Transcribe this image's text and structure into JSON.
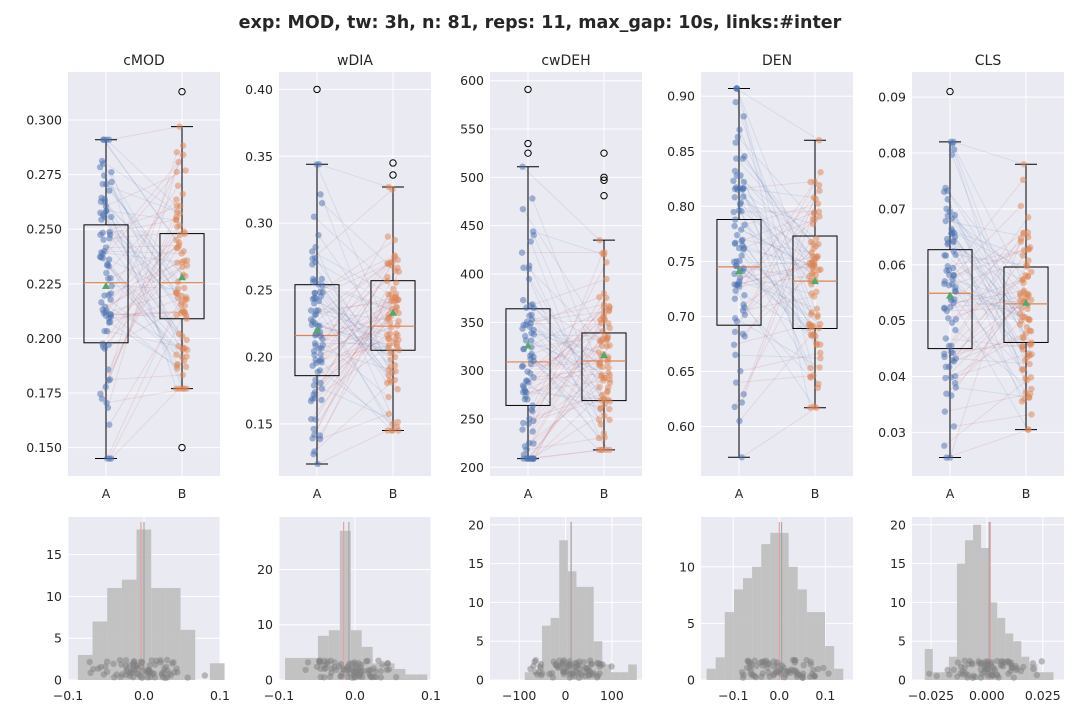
{
  "figure": {
    "title": "exp: MOD, tw: 3h, n: 81, reps: 11, max_gap: 10s, links:#inter"
  },
  "colors": {
    "background": "#eaeaf2",
    "grid": "#ffffff",
    "group_a": "#4c72b0",
    "group_b": "#dd8452",
    "median": "#dd8452",
    "mean_marker": "#55a868",
    "hist_bar": "#c0c0c0",
    "hist_points": "#808080",
    "ref_line": "#e8a0a0",
    "link_up": "#c44e52",
    "link_down": "#4c72b0"
  },
  "chart_data": [
    {
      "type": "box",
      "title": "cMOD",
      "categories": [
        "A",
        "B"
      ],
      "ylim": [
        0.137,
        0.322
      ],
      "yticks": [
        "0.150",
        "0.175",
        "0.200",
        "0.225",
        "0.250",
        "0.275",
        "0.300"
      ],
      "boxes": [
        {
          "name": "A",
          "whisker_low": 0.145,
          "q1": 0.198,
          "median": 0.2255,
          "q3": 0.252,
          "whisker_high": 0.291,
          "mean": 0.224,
          "outliers": []
        },
        {
          "name": "B",
          "whisker_low": 0.177,
          "q1": 0.209,
          "median": 0.2255,
          "q3": 0.248,
          "whisker_high": 0.297,
          "mean": 0.228,
          "outliers": [
            0.15,
            0.313
          ]
        }
      ]
    },
    {
      "type": "box",
      "title": "wDIA",
      "categories": [
        "A",
        "B"
      ],
      "ylim": [
        0.111,
        0.413
      ],
      "yticks": [
        "0.15",
        "0.20",
        "0.25",
        "0.30",
        "0.35",
        "0.40"
      ],
      "boxes": [
        {
          "name": "A",
          "whisker_low": 0.12,
          "q1": 0.186,
          "median": 0.216,
          "q3": 0.254,
          "whisker_high": 0.344,
          "mean": 0.22,
          "outliers": [
            0.4
          ]
        },
        {
          "name": "B",
          "whisker_low": 0.145,
          "q1": 0.205,
          "median": 0.223,
          "q3": 0.257,
          "whisker_high": 0.327,
          "mean": 0.233,
          "outliers": [
            0.336,
            0.345
          ]
        }
      ]
    },
    {
      "type": "box",
      "title": "cwDEH",
      "categories": [
        "A",
        "B"
      ],
      "ylim": [
        191,
        609
      ],
      "yticks": [
        "200",
        "250",
        "300",
        "350",
        "400",
        "450",
        "500",
        "550",
        "600"
      ],
      "boxes": [
        {
          "name": "A",
          "whisker_low": 209,
          "q1": 264,
          "median": 309,
          "q3": 364,
          "whisker_high": 511,
          "mean": 326,
          "outliers": [
            525,
            535,
            591
          ]
        },
        {
          "name": "B",
          "whisker_low": 218,
          "q1": 269,
          "median": 310,
          "q3": 339,
          "whisker_high": 435,
          "mean": 316,
          "outliers": [
            481,
            497,
            500,
            525
          ]
        }
      ]
    },
    {
      "type": "box",
      "title": "DEN",
      "categories": [
        "A",
        "B"
      ],
      "ylim": [
        0.555,
        0.922
      ],
      "yticks": [
        "0.60",
        "0.65",
        "0.70",
        "0.75",
        "0.80",
        "0.85",
        "0.90"
      ],
      "boxes": [
        {
          "name": "A",
          "whisker_low": 0.572,
          "q1": 0.692,
          "median": 0.745,
          "q3": 0.788,
          "whisker_high": 0.907,
          "mean": 0.741,
          "outliers": []
        },
        {
          "name": "B",
          "whisker_low": 0.617,
          "q1": 0.689,
          "median": 0.732,
          "q3": 0.773,
          "whisker_high": 0.86,
          "mean": 0.732,
          "outliers": []
        }
      ]
    },
    {
      "type": "box",
      "title": "CLS",
      "categories": [
        "A",
        "B"
      ],
      "ylim": [
        0.0222,
        0.0945
      ],
      "yticks": [
        "0.03",
        "0.04",
        "0.05",
        "0.06",
        "0.07",
        "0.08",
        "0.09"
      ],
      "boxes": [
        {
          "name": "A",
          "whisker_low": 0.0255,
          "q1": 0.045,
          "median": 0.0549,
          "q3": 0.0627,
          "whisker_high": 0.082,
          "mean": 0.0545,
          "outliers": [
            0.091
          ]
        },
        {
          "name": "B",
          "whisker_low": 0.0305,
          "q1": 0.0461,
          "median": 0.053,
          "q3": 0.0596,
          "whisker_high": 0.078,
          "mean": 0.0532,
          "outliers": []
        }
      ]
    },
    {
      "type": "histogram",
      "xlim": [
        -0.1,
        0.1
      ],
      "ylim": [
        0,
        19.5
      ],
      "ref_x": -0.004,
      "median_x": 0.0,
      "xticks": [
        {
          "v": -0.1,
          "t": "−0.1"
        },
        {
          "v": 0.0,
          "t": "0.0"
        },
        {
          "v": 0.1,
          "t": "0.1"
        }
      ],
      "yticks": [
        {
          "v": 0,
          "t": "0"
        },
        {
          "v": 5,
          "t": "5"
        },
        {
          "v": 10,
          "t": "10"
        },
        {
          "v": 15,
          "t": "15"
        }
      ],
      "bin_width": 0.0193,
      "bins": [
        [
          -0.087,
          3
        ],
        [
          -0.0677,
          7
        ],
        [
          -0.0484,
          11
        ],
        [
          -0.0291,
          12
        ],
        [
          -0.0098,
          18
        ],
        [
          0.0095,
          11
        ],
        [
          0.0288,
          11
        ],
        [
          0.0481,
          6
        ],
        [
          0.0674,
          0
        ],
        [
          0.0867,
          2
        ]
      ]
    },
    {
      "type": "histogram",
      "xlim": [
        -0.1,
        0.1
      ],
      "ylim": [
        0,
        29.5
      ],
      "ref_x": -0.015,
      "median_x": -0.008,
      "xticks": [
        {
          "v": -0.1,
          "t": "−0.1"
        },
        {
          "v": 0.0,
          "t": "0.0"
        },
        {
          "v": 0.1,
          "t": "0.1"
        }
      ],
      "yticks": [
        {
          "v": 0,
          "t": "0"
        },
        {
          "v": 10,
          "t": "10"
        },
        {
          "v": 20,
          "t": "20"
        }
      ],
      "bin_width": 0.0144,
      "bins": [
        [
          -0.092,
          4
        ],
        [
          -0.0776,
          4
        ],
        [
          -0.0632,
          4
        ],
        [
          -0.0488,
          8
        ],
        [
          -0.0344,
          9
        ],
        [
          -0.02,
          27
        ],
        [
          -0.0056,
          9
        ],
        [
          0.0088,
          6
        ],
        [
          0.0232,
          3
        ],
        [
          0.0376,
          3
        ],
        [
          0.052,
          2
        ],
        [
          0.0664,
          1
        ],
        [
          0.0808,
          1
        ]
      ]
    },
    {
      "type": "histogram",
      "xlim": [
        -163,
        165
      ],
      "ylim": [
        0,
        21
      ],
      "ref_x": 12,
      "median_x": 12,
      "xticks": [
        {
          "v": -100,
          "t": "−100"
        },
        {
          "v": 0,
          "t": "0"
        },
        {
          "v": 100,
          "t": "100"
        }
      ],
      "yticks": [
        {
          "v": 0,
          "t": "0"
        },
        {
          "v": 5,
          "t": "5"
        },
        {
          "v": 10,
          "t": "10"
        },
        {
          "v": 15,
          "t": "15"
        },
        {
          "v": 20,
          "t": "20"
        }
      ],
      "bin_width": 18.6,
      "bins": [
        [
          -88,
          1
        ],
        [
          -69.4,
          1
        ],
        [
          -50.8,
          7
        ],
        [
          -32.2,
          8
        ],
        [
          -13.6,
          18
        ],
        [
          5,
          14
        ],
        [
          23.6,
          12
        ],
        [
          42.2,
          12
        ],
        [
          60.8,
          5
        ],
        [
          79.4,
          2
        ],
        [
          98,
          1
        ],
        [
          116.6,
          1
        ],
        [
          135.2,
          2
        ]
      ]
    },
    {
      "type": "histogram",
      "xlim": [
        -0.17,
        0.16
      ],
      "ylim": [
        0,
        14.4
      ],
      "ref_x": 0.0,
      "median_x": 0.005,
      "xticks": [
        {
          "v": -0.1,
          "t": "−0.1"
        },
        {
          "v": 0.0,
          "t": "0.0"
        },
        {
          "v": 0.1,
          "t": "0.1"
        }
      ],
      "yticks": [
        {
          "v": 0,
          "t": "0"
        },
        {
          "v": 5,
          "t": "5"
        },
        {
          "v": 10,
          "t": "10"
        }
      ],
      "bin_width": 0.0198,
      "bins": [
        [
          -0.158,
          1
        ],
        [
          -0.1382,
          2
        ],
        [
          -0.1184,
          6
        ],
        [
          -0.0986,
          8
        ],
        [
          -0.0788,
          9
        ],
        [
          -0.059,
          10
        ],
        [
          -0.0392,
          12
        ],
        [
          -0.0194,
          13
        ],
        [
          0.0004,
          13
        ],
        [
          0.0202,
          10
        ],
        [
          0.04,
          8
        ],
        [
          0.0598,
          6
        ],
        [
          0.0796,
          6
        ],
        [
          0.0994,
          3
        ],
        [
          0.1192,
          1
        ]
      ]
    },
    {
      "type": "histogram",
      "xlim": [
        -0.0335,
        0.0345
      ],
      "ylim": [
        0,
        21
      ],
      "ref_x": 0.0015,
      "median_x": 0.001,
      "xticks": [
        {
          "v": -0.025,
          "t": "−0.025"
        },
        {
          "v": 0.0,
          "t": "0.000"
        },
        {
          "v": 0.025,
          "t": "0.025"
        }
      ],
      "yticks": [
        {
          "v": 0,
          "t": "0"
        },
        {
          "v": 5,
          "t": "5"
        },
        {
          "v": 10,
          "t": "10"
        },
        {
          "v": 15,
          "t": "15"
        },
        {
          "v": 20,
          "t": "20"
        }
      ],
      "bin_width": 0.0036,
      "bins": [
        [
          -0.0278,
          4
        ],
        [
          -0.0242,
          1
        ],
        [
          -0.0206,
          1
        ],
        [
          -0.017,
          3
        ],
        [
          -0.0134,
          15
        ],
        [
          -0.0098,
          18
        ],
        [
          -0.0062,
          20
        ],
        [
          -0.0026,
          17
        ],
        [
          0.001,
          10
        ],
        [
          0.0046,
          8
        ],
        [
          0.0082,
          6
        ],
        [
          0.0118,
          5
        ],
        [
          0.0154,
          3
        ],
        [
          0.019,
          2
        ],
        [
          0.0226,
          1
        ],
        [
          0.0262,
          1
        ]
      ]
    }
  ]
}
